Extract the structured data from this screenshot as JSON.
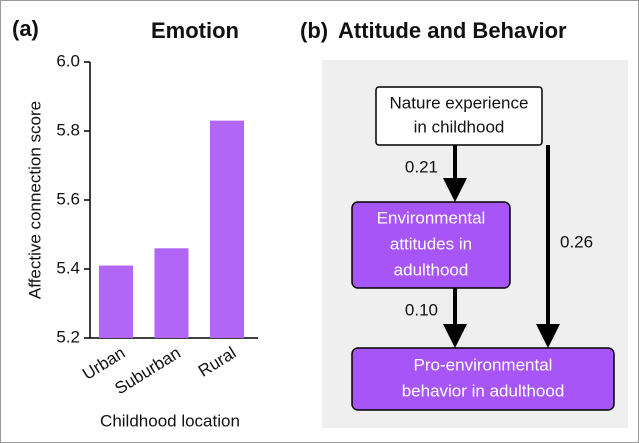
{
  "chart_data": {
    "type": "bar",
    "panel_label": "(a)",
    "title": "Emotion",
    "categories": [
      "Urban",
      "Suburban",
      "Rural"
    ],
    "values": [
      5.41,
      5.46,
      5.83
    ],
    "color": "#b266f5",
    "ylim": [
      5.2,
      6.0
    ],
    "yticks": [
      5.2,
      5.4,
      5.6,
      5.8,
      {
        "value": 6,
        "label": "6.0"
      }
    ],
    "ylabel": "Affective connection score",
    "xlabel": "Childhood location",
    "grid": false
  },
  "diagram": {
    "panel_label": "(b)",
    "title": "Attitude and Behavior",
    "nodes": [
      {
        "lines": [
          "Nature experience",
          "in childhood"
        ]
      },
      {
        "lines": [
          "Environmental",
          "attitudes in",
          "adulthood"
        ]
      },
      {
        "lines": [
          "Pro-environmental",
          "behavior in adulthood"
        ]
      }
    ],
    "edges": [
      {
        "label": "0.21"
      },
      {
        "label": "0.10"
      },
      {
        "label": "0.26"
      }
    ]
  }
}
